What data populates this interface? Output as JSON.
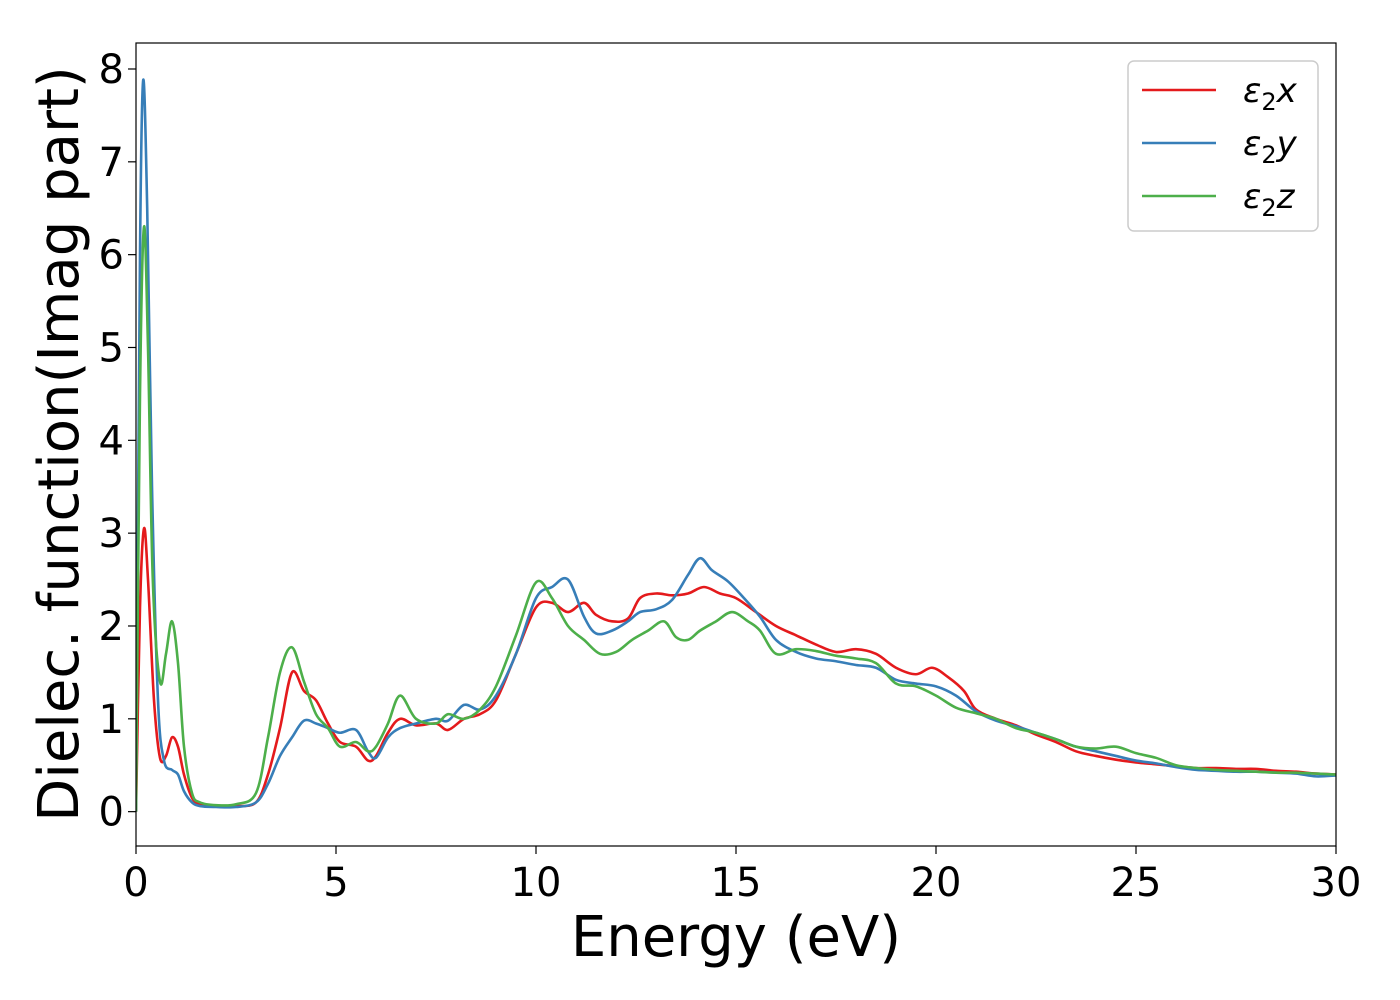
{
  "chart_data": {
    "type": "line",
    "title": "",
    "xlabel": "Energy (eV)",
    "ylabel": "Dielec. function(Imag part)",
    "xlim": [
      0,
      30
    ],
    "ylim": [
      -0.37,
      8.28
    ],
    "xticks": [
      0,
      5,
      10,
      15,
      20,
      25,
      30
    ],
    "yticks": [
      0,
      1,
      2,
      3,
      4,
      5,
      6,
      7,
      8
    ],
    "grid": false,
    "legend_position": "top-right",
    "series": [
      {
        "name": "ε2x",
        "legend": {
          "symbol": "ε",
          "sub": "2",
          "suffix": "x"
        },
        "color": "#e41a1c",
        "x": [
          0,
          0.1,
          0.2,
          0.3,
          0.45,
          0.6,
          0.75,
          0.9,
          1.05,
          1.2,
          1.4,
          1.6,
          2.0,
          2.5,
          3.0,
          3.3,
          3.6,
          3.9,
          4.2,
          4.5,
          4.8,
          5.1,
          5.5,
          5.8,
          6.0,
          6.3,
          6.6,
          7.0,
          7.5,
          7.8,
          8.2,
          8.6,
          9.0,
          9.5,
          10.0,
          10.4,
          10.8,
          11.2,
          11.5,
          11.9,
          12.3,
          12.6,
          13.0,
          13.4,
          13.8,
          14.2,
          14.6,
          15.0,
          15.5,
          16.0,
          16.5,
          17.0,
          17.5,
          18.0,
          18.5,
          19.0,
          19.5,
          19.9,
          20.3,
          20.7,
          21.0,
          21.5,
          22.0,
          22.5,
          23.0,
          23.5,
          24.0,
          24.5,
          25.0,
          25.5,
          26.0,
          26.5,
          27.0,
          27.5,
          28.0,
          28.5,
          29.0,
          29.5,
          30.0
        ],
        "y": [
          0.0,
          2.2,
          3.05,
          2.5,
          1.2,
          0.58,
          0.6,
          0.8,
          0.7,
          0.4,
          0.15,
          0.08,
          0.06,
          0.06,
          0.1,
          0.4,
          0.9,
          1.5,
          1.3,
          1.2,
          0.95,
          0.75,
          0.7,
          0.55,
          0.6,
          0.85,
          1.0,
          0.93,
          0.95,
          0.88,
          1.0,
          1.05,
          1.2,
          1.7,
          2.2,
          2.25,
          2.15,
          2.25,
          2.12,
          2.05,
          2.08,
          2.3,
          2.35,
          2.33,
          2.35,
          2.42,
          2.35,
          2.3,
          2.15,
          2.0,
          1.9,
          1.8,
          1.72,
          1.75,
          1.7,
          1.55,
          1.48,
          1.55,
          1.45,
          1.3,
          1.1,
          1.0,
          0.93,
          0.83,
          0.75,
          0.65,
          0.6,
          0.56,
          0.53,
          0.51,
          0.49,
          0.47,
          0.47,
          0.46,
          0.46,
          0.44,
          0.43,
          0.41,
          0.4
        ]
      },
      {
        "name": "ε2y",
        "legend": {
          "symbol": "ε",
          "sub": "2",
          "suffix": "y"
        },
        "color": "#377eb8",
        "x": [
          0,
          0.1,
          0.18,
          0.28,
          0.4,
          0.55,
          0.7,
          0.9,
          1.05,
          1.2,
          1.4,
          1.6,
          2.0,
          2.5,
          3.0,
          3.3,
          3.6,
          3.9,
          4.2,
          4.5,
          4.8,
          5.1,
          5.5,
          5.8,
          6.0,
          6.3,
          6.6,
          7.0,
          7.5,
          7.8,
          8.2,
          8.6,
          9.0,
          9.5,
          10.0,
          10.4,
          10.8,
          11.2,
          11.5,
          11.9,
          12.3,
          12.6,
          13.0,
          13.4,
          13.8,
          14.1,
          14.4,
          14.8,
          15.2,
          15.6,
          16.0,
          16.5,
          17.0,
          17.5,
          18.0,
          18.5,
          19.0,
          19.5,
          20.0,
          20.5,
          21.0,
          21.5,
          22.0,
          22.5,
          23.0,
          23.5,
          24.0,
          24.5,
          25.0,
          25.5,
          26.0,
          26.5,
          27.0,
          27.5,
          28.0,
          28.5,
          29.0,
          29.5,
          30.0
        ],
        "y": [
          0.0,
          6.0,
          7.88,
          6.5,
          3.5,
          1.2,
          0.55,
          0.45,
          0.4,
          0.22,
          0.1,
          0.06,
          0.05,
          0.05,
          0.1,
          0.3,
          0.6,
          0.8,
          0.98,
          0.95,
          0.9,
          0.85,
          0.88,
          0.65,
          0.58,
          0.8,
          0.9,
          0.95,
          1.0,
          0.98,
          1.15,
          1.1,
          1.25,
          1.7,
          2.3,
          2.42,
          2.5,
          2.1,
          1.92,
          1.95,
          2.05,
          2.15,
          2.18,
          2.28,
          2.55,
          2.73,
          2.6,
          2.48,
          2.3,
          2.1,
          1.85,
          1.72,
          1.65,
          1.62,
          1.58,
          1.55,
          1.42,
          1.38,
          1.35,
          1.25,
          1.08,
          0.98,
          0.92,
          0.85,
          0.78,
          0.7,
          0.65,
          0.6,
          0.55,
          0.52,
          0.48,
          0.45,
          0.44,
          0.43,
          0.43,
          0.42,
          0.41,
          0.38,
          0.39
        ]
      },
      {
        "name": "ε2z",
        "legend": {
          "symbol": "ε",
          "sub": "2",
          "suffix": "z"
        },
        "color": "#4daf4a",
        "x": [
          0,
          0.1,
          0.2,
          0.3,
          0.42,
          0.6,
          0.75,
          0.9,
          1.05,
          1.2,
          1.4,
          1.6,
          2.0,
          2.5,
          3.0,
          3.3,
          3.6,
          3.9,
          4.2,
          4.5,
          4.8,
          5.1,
          5.5,
          5.8,
          6.0,
          6.3,
          6.6,
          7.0,
          7.5,
          7.8,
          8.2,
          8.6,
          9.0,
          9.5,
          10.0,
          10.4,
          10.8,
          11.2,
          11.6,
          12.0,
          12.4,
          12.8,
          13.2,
          13.5,
          13.8,
          14.1,
          14.5,
          14.9,
          15.3,
          15.6,
          16.0,
          16.5,
          17.0,
          17.5,
          18.0,
          18.5,
          19.0,
          19.5,
          20.0,
          20.5,
          21.0,
          21.5,
          22.0,
          22.5,
          23.0,
          23.5,
          24.0,
          24.5,
          25.0,
          25.5,
          26.0,
          26.5,
          27.0,
          27.5,
          28.0,
          28.5,
          29.0,
          29.5,
          30.0
        ],
        "y": [
          0.0,
          4.5,
          6.3,
          5.0,
          2.5,
          1.4,
          1.7,
          2.05,
          1.6,
          0.7,
          0.2,
          0.1,
          0.07,
          0.08,
          0.2,
          0.8,
          1.5,
          1.77,
          1.4,
          1.05,
          0.9,
          0.7,
          0.75,
          0.65,
          0.7,
          0.95,
          1.25,
          1.0,
          0.95,
          1.05,
          1.0,
          1.1,
          1.35,
          1.9,
          2.47,
          2.3,
          2.0,
          1.85,
          1.7,
          1.72,
          1.85,
          1.95,
          2.05,
          1.88,
          1.85,
          1.95,
          2.05,
          2.15,
          2.05,
          1.95,
          1.7,
          1.75,
          1.73,
          1.68,
          1.65,
          1.6,
          1.38,
          1.35,
          1.25,
          1.12,
          1.06,
          1.0,
          0.9,
          0.85,
          0.78,
          0.7,
          0.68,
          0.7,
          0.63,
          0.58,
          0.5,
          0.47,
          0.45,
          0.44,
          0.43,
          0.42,
          0.42,
          0.41,
          0.4
        ]
      }
    ]
  }
}
